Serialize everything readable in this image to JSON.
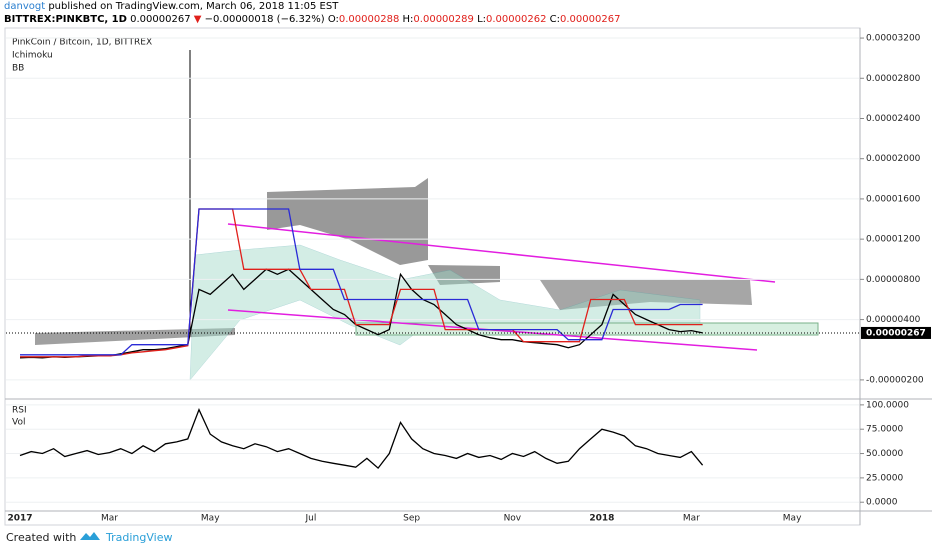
{
  "header": {
    "publisher": "danvogt",
    "published": "published on TradingView.com, March 06, 2018 11:05 EST",
    "symbol": "BITTREX:PINKBTC, 1D",
    "last": "0.00000267",
    "arrow": "▼",
    "change": "−0.00000018 (−6.32%)",
    "ohlc": [
      [
        "O:",
        "0.00000288"
      ],
      [
        "H:",
        "0.00000289"
      ],
      [
        "L:",
        "0.00000262"
      ],
      [
        "C:",
        "0.00000267"
      ]
    ]
  },
  "footer": {
    "created": "Created with",
    "brand": "TradingView"
  },
  "chart_data": [
    {
      "type": "line",
      "title": "PinkCoin / Bitcoin, 1D, BITTREX",
      "indicators": [
        "Ichimoku",
        "BB"
      ],
      "categories": [
        "2017",
        null,
        null,
        null,
        null,
        null,
        null,
        null,
        "Mar",
        null,
        null,
        null,
        null,
        null,
        null,
        null,
        null,
        "May",
        null,
        null,
        null,
        null,
        null,
        null,
        null,
        null,
        "Jul",
        null,
        null,
        null,
        null,
        null,
        null,
        null,
        null,
        "Sep",
        null,
        null,
        null,
        null,
        null,
        null,
        null,
        null,
        "Nov",
        null,
        null,
        null,
        null,
        null,
        null,
        null,
        "2018",
        null,
        null,
        null,
        null,
        null,
        null,
        null,
        "Mar",
        null,
        null,
        null,
        null,
        null,
        null,
        null,
        null,
        "May",
        null,
        null,
        null,
        null,
        null,
        null
      ],
      "series": [
        {
          "color": "#000000",
          "values": [
            2e-07,
            2.5e-07,
            2e-07,
            3e-07,
            2.5e-07,
            3e-07,
            3.5e-07,
            4e-07,
            4e-07,
            6e-07,
            8e-07,
            1e-06,
            1e-06,
            1.1e-06,
            1.3e-06,
            1.5e-06,
            7e-06,
            6.5e-06,
            7.5e-06,
            8.5e-06,
            7e-06,
            8e-06,
            9e-06,
            8.5e-06,
            9e-06,
            8e-06,
            7e-06,
            6e-06,
            5e-06,
            4.5e-06,
            3.5e-06,
            3e-06,
            2.5e-06,
            3e-06,
            8.5e-06,
            7e-06,
            6e-06,
            5.5e-06,
            4.5e-06,
            3.5e-06,
            3e-06,
            2.5e-06,
            2.2e-06,
            2e-06,
            2e-06,
            1.8e-06,
            1.7e-06,
            1.6e-06,
            1.5e-06,
            1.2e-06,
            1.5e-06,
            2.5e-06,
            3.5e-06,
            6.5e-06,
            5.5e-06,
            4.5e-06,
            4e-06,
            3.5e-06,
            3e-06,
            2.8e-06,
            2.9e-06,
            2.67e-06,
            null,
            null,
            null,
            null,
            null,
            null,
            null,
            null,
            null,
            null,
            null,
            null,
            null,
            null
          ]
        },
        {
          "color": "#e0201b",
          "values": [
            3e-07,
            3e-07,
            3e-07,
            3e-07,
            3e-07,
            3e-07,
            4e-07,
            4e-07,
            4e-07,
            5e-07,
            7e-07,
            8e-07,
            9e-07,
            1e-06,
            1.2e-06,
            1.4e-06,
            1.5e-05,
            1.5e-05,
            1.5e-05,
            1.5e-05,
            9e-06,
            9e-06,
            9e-06,
            9e-06,
            9e-06,
            9e-06,
            7e-06,
            7e-06,
            7e-06,
            7e-06,
            3.5e-06,
            3.5e-06,
            3.5e-06,
            3.5e-06,
            7e-06,
            7e-06,
            7e-06,
            7e-06,
            3e-06,
            3e-06,
            3e-06,
            3e-06,
            3e-06,
            3e-06,
            3e-06,
            1.8e-06,
            1.8e-06,
            1.8e-06,
            1.8e-06,
            1.8e-06,
            1.8e-06,
            6e-06,
            6e-06,
            6e-06,
            6e-06,
            3.5e-06,
            3.5e-06,
            3.5e-06,
            3.5e-06,
            3.5e-06,
            3.5e-06,
            3.5e-06,
            null,
            null,
            null,
            null,
            null,
            null,
            null,
            null,
            null,
            null,
            null,
            null,
            null,
            null
          ]
        },
        {
          "color": "#2a2ad6",
          "values": [
            5e-07,
            5e-07,
            5e-07,
            5e-07,
            5e-07,
            5e-07,
            5e-07,
            5e-07,
            5e-07,
            5e-07,
            1.5e-06,
            1.5e-06,
            1.5e-06,
            1.5e-06,
            1.5e-06,
            1.5e-06,
            1.5e-05,
            1.5e-05,
            1.5e-05,
            1.5e-05,
            1.5e-05,
            1.5e-05,
            1.5e-05,
            1.5e-05,
            1.5e-05,
            9e-06,
            9e-06,
            9e-06,
            9e-06,
            6e-06,
            6e-06,
            6e-06,
            6e-06,
            6e-06,
            6e-06,
            6e-06,
            6e-06,
            6e-06,
            6e-06,
            6e-06,
            6e-06,
            3e-06,
            3e-06,
            3e-06,
            3e-06,
            3e-06,
            3e-06,
            3e-06,
            3e-06,
            2e-06,
            2e-06,
            2e-06,
            2e-06,
            5e-06,
            5e-06,
            5e-06,
            5e-06,
            5e-06,
            5e-06,
            5.5e-06,
            5.5e-06,
            5.5e-06,
            null,
            null,
            null,
            null,
            null,
            null,
            null,
            null,
            null,
            null,
            null,
            null,
            null,
            null
          ]
        }
      ],
      "price_line": {
        "value": 2.67e-06,
        "label": "0.00000267"
      },
      "ylim": [
        -3.8e-06,
        3.3e-05
      ],
      "yticks": [
        {
          "value": 3.2e-05,
          "label": "0.00003200"
        },
        {
          "value": 2.8e-05,
          "label": "0.00002800"
        },
        {
          "value": 2.4e-05,
          "label": "0.00002400"
        },
        {
          "value": 2e-05,
          "label": "0.00002000"
        },
        {
          "value": 1.6e-05,
          "label": "0.00001600"
        },
        {
          "value": 1.2e-05,
          "label": "0.00001200"
        },
        {
          "value": 8e-06,
          "label": "0.00000800"
        },
        {
          "value": 4e-06,
          "label": "0.00000400"
        },
        {
          "value": -2e-06,
          "label": "-0.00000200"
        }
      ],
      "grid": true
    },
    {
      "type": "line",
      "title": "RSI",
      "subtitle": "Vol",
      "series": [
        {
          "color": "#000000",
          "values": [
            48,
            52,
            50,
            55,
            47,
            50,
            53,
            49,
            51,
            55,
            50,
            58,
            52,
            60,
            62,
            65,
            95,
            70,
            62,
            58,
            55,
            60,
            57,
            52,
            55,
            50,
            45,
            42,
            40,
            38,
            36,
            45,
            35,
            50,
            82,
            65,
            55,
            50,
            48,
            45,
            50,
            46,
            48,
            44,
            50,
            47,
            52,
            45,
            40,
            42,
            55,
            65,
            75,
            72,
            68,
            58,
            55,
            50,
            48,
            46,
            52,
            38,
            null,
            null,
            null,
            null,
            null,
            null,
            null,
            null,
            null,
            null,
            null,
            null,
            null,
            null
          ]
        }
      ],
      "ylim": [
        -8,
        105
      ],
      "yticks": [
        {
          "value": 100,
          "label": "100.0000"
        },
        {
          "value": 75,
          "label": "75.0000"
        },
        {
          "value": 50,
          "label": "50.0000"
        },
        {
          "value": 25,
          "label": "25.0000"
        },
        {
          "value": 0,
          "label": "0.0000"
        }
      ],
      "grid": true
    }
  ]
}
